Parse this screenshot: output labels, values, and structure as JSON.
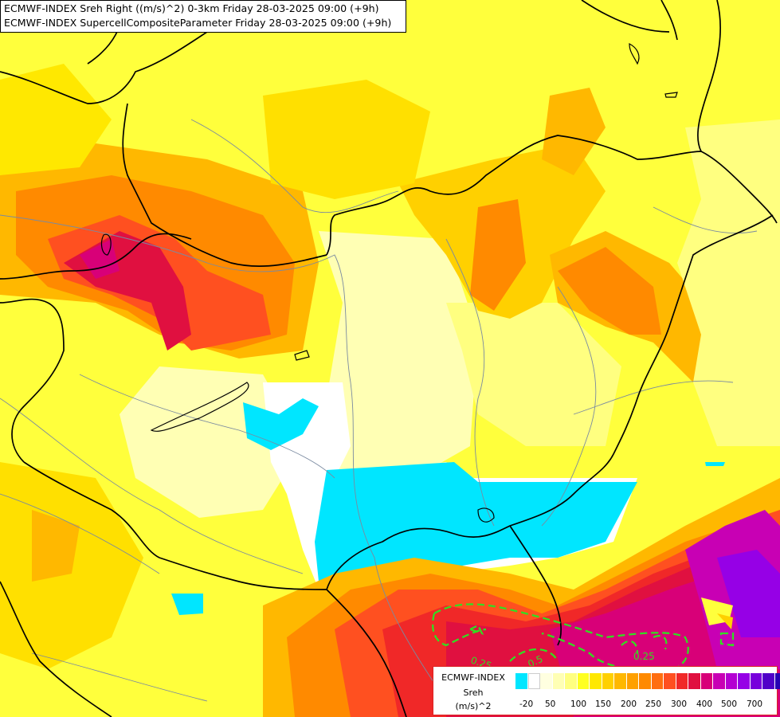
{
  "title": {
    "line1": "ECMWF-INDEX Sreh Right ((m/s)^2) 0-3km Friday 28-03-2025 09:00 (+9h)",
    "line2": "ECMWF-INDEX SupercellCompositeParameter Friday 28-03-2025 09:00 (+9h)"
  },
  "legend": {
    "model": "ECMWF-INDEX",
    "parameter": "Sreh",
    "unit": "(m/s)^2",
    "colors": [
      "#00e6ff",
      "#ffffff",
      "#ffffe0",
      "#ffffb4",
      "#ffff80",
      "#ffff20",
      "#ffe800",
      "#ffd000",
      "#ffb800",
      "#ffa000",
      "#ff8a00",
      "#ff6e10",
      "#ff5020",
      "#f02828",
      "#e01040",
      "#d80078",
      "#c800b4",
      "#b400d2",
      "#9600e6",
      "#7800dc",
      "#5000c8",
      "#2800b4",
      "#0a0096"
    ],
    "ticks": [
      "-20",
      "50",
      "100",
      "150",
      "200",
      "250",
      "300",
      "400",
      "500",
      "700"
    ]
  },
  "map": {
    "scp_contour_labels": [
      "0.25",
      "0.5",
      "0.25"
    ]
  }
}
